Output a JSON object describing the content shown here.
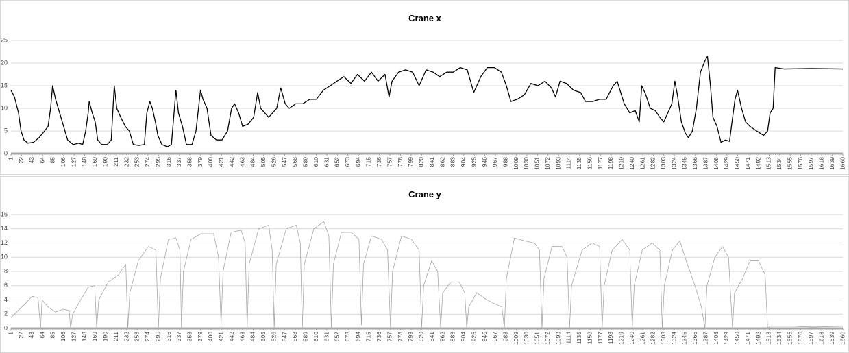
{
  "chart_data": [
    {
      "type": "line",
      "title": "Crane x",
      "color": "#000000",
      "grid": true,
      "xlim": [
        1,
        1660
      ],
      "xticks": [
        1,
        22,
        43,
        64,
        85,
        106,
        127,
        148,
        169,
        190,
        211,
        232,
        253,
        274,
        295,
        316,
        337,
        358,
        379,
        400,
        421,
        442,
        463,
        484,
        505,
        526,
        547,
        568,
        589,
        610,
        631,
        652,
        673,
        694,
        715,
        736,
        757,
        778,
        799,
        820,
        841,
        862,
        883,
        904,
        925,
        946,
        967,
        988,
        1009,
        1030,
        1051,
        1072,
        1093,
        1114,
        1135,
        1156,
        1177,
        1198,
        1219,
        1240,
        1261,
        1282,
        1303,
        1324,
        1345,
        1366,
        1387,
        1408,
        1429,
        1450,
        1471,
        1492,
        1513,
        1534,
        1555,
        1576,
        1597,
        1618,
        1639,
        1660
      ],
      "ylim": [
        0,
        25
      ],
      "yticks": [
        0,
        5,
        10,
        15,
        20,
        25
      ],
      "x": [
        1,
        8,
        16,
        21,
        27,
        35,
        46,
        57,
        68,
        75,
        80,
        84,
        90,
        98,
        106,
        114,
        125,
        136,
        144,
        150,
        155,
        157,
        163,
        169,
        174,
        182,
        193,
        201,
        207,
        212,
        220,
        229,
        237,
        245,
        256,
        267,
        272,
        278,
        283,
        289,
        294,
        302,
        313,
        321,
        330,
        335,
        343,
        351,
        362,
        370,
        379,
        384,
        392,
        400,
        411,
        422,
        433,
        441,
        447,
        455,
        463,
        474,
        485,
        493,
        499,
        507,
        515,
        523,
        531,
        539,
        548,
        556,
        569,
        583,
        597,
        610,
        624,
        638,
        651,
        665,
        679,
        692,
        706,
        720,
        733,
        747,
        755,
        761,
        774,
        788,
        802,
        815,
        829,
        843,
        856,
        870,
        883,
        897,
        911,
        924,
        938,
        951,
        965,
        979,
        989,
        998,
        1011,
        1025,
        1038,
        1052,
        1066,
        1079,
        1087,
        1096,
        1109,
        1123,
        1137,
        1147,
        1161,
        1175,
        1188,
        1202,
        1210,
        1224,
        1235,
        1246,
        1254,
        1259,
        1267,
        1276,
        1286,
        1295,
        1303,
        1311,
        1319,
        1325,
        1330,
        1338,
        1346,
        1352,
        1360,
        1368,
        1376,
        1385,
        1390,
        1396,
        1401,
        1409,
        1417,
        1426,
        1434,
        1439,
        1445,
        1450,
        1458,
        1466,
        1475,
        1488,
        1502,
        1510,
        1515,
        1521,
        1525,
        1543,
        1597,
        1660
      ],
      "values": [
        14,
        12.5,
        9,
        5,
        3,
        2.3,
        2.5,
        3.5,
        5,
        6,
        10,
        15,
        12,
        9,
        6,
        3,
        2,
        2.3,
        2,
        5,
        9,
        11.5,
        9,
        7,
        3,
        2,
        2,
        3,
        15,
        10,
        8,
        6,
        5,
        2,
        1.8,
        2,
        9,
        11.5,
        10,
        7,
        4,
        2,
        1.5,
        2,
        14,
        9,
        6,
        2,
        2,
        5,
        14,
        12,
        10,
        4,
        3,
        3,
        5,
        10,
        11,
        9,
        6,
        6.5,
        8,
        13.5,
        10,
        9,
        8,
        9,
        10,
        14.5,
        11,
        10,
        11,
        11,
        12,
        12,
        14,
        15,
        16,
        17,
        15.5,
        17.5,
        16,
        18,
        16,
        17.5,
        12.5,
        16,
        18,
        18.5,
        18,
        15,
        18.5,
        18,
        17,
        18,
        18,
        19,
        18.5,
        13.5,
        17,
        19,
        19,
        18,
        15,
        11.5,
        12,
        13,
        15.5,
        15,
        16,
        14.5,
        12.5,
        16,
        15.5,
        14,
        13.5,
        11.5,
        11.5,
        12,
        12,
        15,
        16,
        11,
        9,
        9.5,
        7,
        15,
        13,
        10,
        9.5,
        8,
        7,
        9,
        11,
        16,
        13,
        7,
        4.5,
        3.5,
        5,
        10,
        18,
        20.5,
        21.5,
        15,
        8,
        6,
        2.5,
        3,
        2.7,
        7,
        12,
        14,
        10,
        7,
        6,
        5,
        4,
        5,
        9,
        10,
        19,
        18.7,
        18.8,
        18.7
      ]
    },
    {
      "type": "line",
      "title": "Crane y",
      "color": "#a6a6a6",
      "grid": true,
      "xlim": [
        1,
        1660
      ],
      "xticks": [
        1,
        22,
        43,
        64,
        85,
        106,
        127,
        148,
        169,
        190,
        211,
        232,
        253,
        274,
        295,
        316,
        337,
        358,
        379,
        400,
        421,
        442,
        463,
        484,
        505,
        526,
        547,
        568,
        589,
        610,
        631,
        652,
        673,
        694,
        715,
        736,
        757,
        778,
        799,
        820,
        841,
        862,
        883,
        904,
        925,
        946,
        967,
        988,
        1009,
        1030,
        1051,
        1072,
        1093,
        1114,
        1135,
        1156,
        1177,
        1198,
        1219,
        1240,
        1261,
        1282,
        1303,
        1324,
        1345,
        1366,
        1387,
        1408,
        1429,
        1450,
        1471,
        1492,
        1513,
        1534,
        1555,
        1576,
        1597,
        1618,
        1639,
        1660
      ],
      "ylim": [
        0,
        16
      ],
      "yticks": [
        0,
        2,
        4,
        6,
        8,
        10,
        12,
        14,
        16
      ],
      "x": [
        1,
        15,
        30,
        43,
        55,
        60,
        63,
        75,
        90,
        105,
        117,
        120,
        124,
        140,
        155,
        168,
        172,
        176,
        195,
        215,
        230,
        234,
        238,
        255,
        275,
        290,
        295,
        299,
        315,
        330,
        338,
        341,
        345,
        360,
        380,
        405,
        415,
        420,
        424,
        440,
        460,
        468,
        472,
        476,
        495,
        515,
        522,
        526,
        530,
        550,
        570,
        578,
        582,
        586,
        605,
        625,
        635,
        640,
        644,
        660,
        680,
        695,
        700,
        704,
        720,
        740,
        752,
        758,
        762,
        780,
        800,
        815,
        820,
        824,
        840,
        852,
        858,
        862,
        878,
        895,
        906,
        910,
        914,
        930,
        950,
        965,
        980,
        985,
        989,
        1005,
        1025,
        1045,
        1055,
        1060,
        1064,
        1080,
        1100,
        1110,
        1115,
        1119,
        1140,
        1160,
        1175,
        1180,
        1184,
        1200,
        1220,
        1235,
        1240,
        1244,
        1260,
        1280,
        1295,
        1300,
        1304,
        1320,
        1335,
        1350,
        1365,
        1378,
        1385,
        1389,
        1405,
        1420,
        1432,
        1440,
        1444,
        1460,
        1475,
        1492,
        1505,
        1510,
        1514,
        1560,
        1600,
        1660
      ],
      "values": [
        1.5,
        2.5,
        3.5,
        4.5,
        4.3,
        0,
        4,
        3,
        2.3,
        2.7,
        2.5,
        0,
        2,
        4,
        5.8,
        6,
        0,
        4,
        6.5,
        7.5,
        9,
        0,
        5,
        9.5,
        11.5,
        11,
        0,
        7,
        12.5,
        12.7,
        11,
        0,
        8,
        12.5,
        13.3,
        13.3,
        10,
        0.5,
        8,
        13.5,
        13.8,
        12,
        0,
        9,
        14,
        14.5,
        11,
        0,
        9,
        14,
        14.5,
        12,
        0,
        9,
        14,
        15,
        13,
        0,
        9,
        13.5,
        13.5,
        12.5,
        0.5,
        9,
        13,
        12.5,
        11,
        0,
        8,
        13,
        12.5,
        11,
        0,
        6,
        9.5,
        8,
        0,
        5,
        6.5,
        6.5,
        5,
        0,
        3,
        5,
        4,
        3.5,
        3,
        0,
        7,
        12.7,
        12.3,
        12,
        11,
        0,
        7,
        11.5,
        11.5,
        10,
        0,
        6,
        11,
        12,
        11.5,
        0,
        6,
        11,
        12.5,
        11,
        0,
        6,
        11,
        12,
        11,
        0,
        6,
        11,
        12.3,
        9,
        6,
        3,
        0,
        6,
        10,
        11.5,
        10,
        0,
        5,
        7,
        9.5,
        9.5,
        7.5,
        0,
        0.3,
        0.3,
        0.2,
        0.3
      ]
    }
  ]
}
